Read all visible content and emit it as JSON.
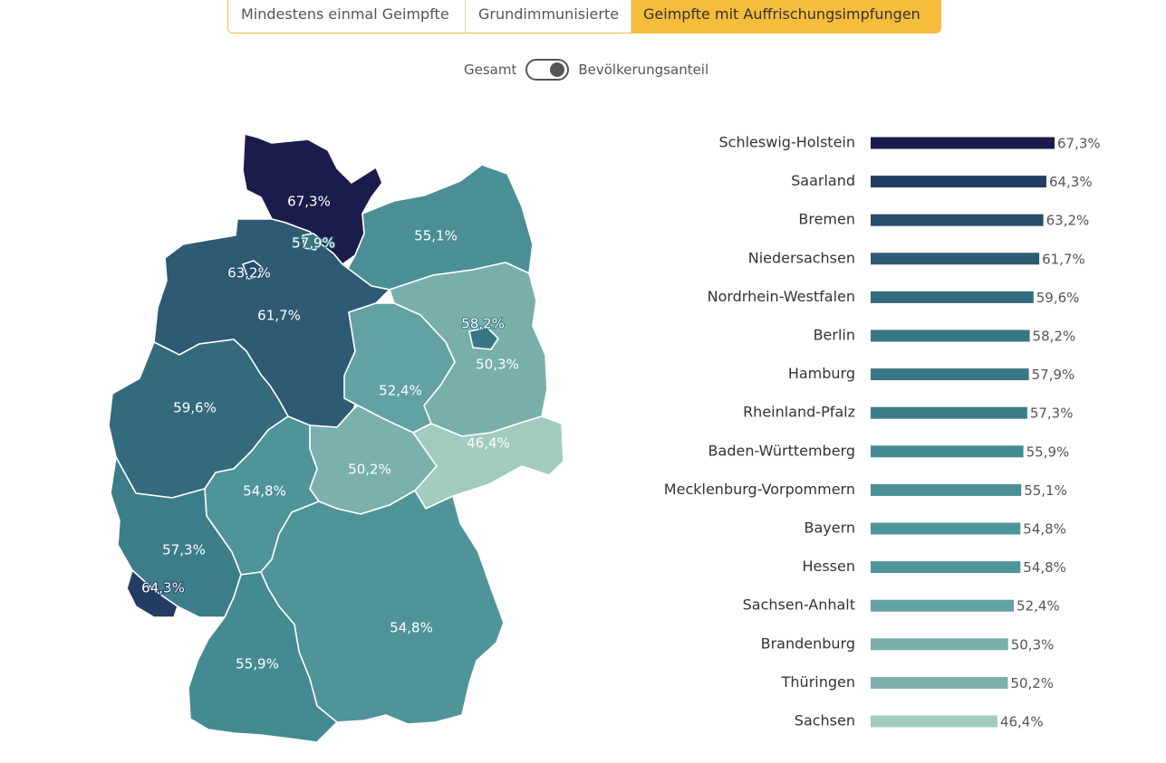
{
  "tabs": [
    {
      "label": "Mindestens einmal Geimpfte",
      "active": false
    },
    {
      "label": "Grundimmunisierte",
      "active": false
    },
    {
      "label": "Geimpfte mit Auffrischungsimpfungen",
      "active": true
    }
  ],
  "toggle": {
    "left_label": "Gesamt",
    "right_label": "Bevölkerungsanteil",
    "selected": "Bevölkerungsanteil"
  },
  "chart_data": {
    "type": "bar",
    "orientation": "horizontal",
    "value_suffix": "%",
    "decimal_separator": ",",
    "xlim": [
      0,
      67.3
    ],
    "categories": [
      "Schleswig-Holstein",
      "Saarland",
      "Bremen",
      "Niedersachsen",
      "Nordrhein-Westfalen",
      "Berlin",
      "Hamburg",
      "Rheinland-Pfalz",
      "Baden-Württemberg",
      "Mecklenburg-Vorpommern",
      "Bayern",
      "Hessen",
      "Sachsen-Anhalt",
      "Brandenburg",
      "Thüringen",
      "Sachsen"
    ],
    "values": [
      67.3,
      64.3,
      63.2,
      61.7,
      59.6,
      58.2,
      57.9,
      57.3,
      55.9,
      55.1,
      54.8,
      54.8,
      52.4,
      50.3,
      50.2,
      46.4
    ],
    "value_labels": [
      "67,3%",
      "64,3%",
      "63,2%",
      "61,7%",
      "59,6%",
      "58,2%",
      "57,9%",
      "57,3%",
      "55,9%",
      "55,1%",
      "54,8%",
      "54,8%",
      "52,4%",
      "50,3%",
      "50,2%",
      "46,4%"
    ],
    "colors": [
      "#1c1c4c",
      "#233d62",
      "#284c6c",
      "#2e5a74",
      "#336a7c",
      "#377683",
      "#387884",
      "#3b7e89",
      "#448a91",
      "#4a8f96",
      "#4f9499",
      "#4f9499",
      "#62a2a3",
      "#79afab",
      "#7bb0ac",
      "#a1cbbd"
    ],
    "choropleth": [
      {
        "region": "Schleswig-Holstein",
        "value": 67.3,
        "label": "67,3%",
        "color": "#1c1c4c"
      },
      {
        "region": "Hamburg",
        "value": 57.9,
        "label": "57,9%",
        "color": "#387884"
      },
      {
        "region": "Mecklenburg-Vorpommern",
        "value": 55.1,
        "label": "55,1%",
        "color": "#4a8f96"
      },
      {
        "region": "Bremen",
        "value": 63.2,
        "label": "63,2%",
        "color": "#284c6c"
      },
      {
        "region": "Niedersachsen",
        "value": 61.7,
        "label": "61,7%",
        "color": "#2e5a74"
      },
      {
        "region": "Berlin",
        "value": 58.2,
        "label": "58,2%",
        "color": "#377683"
      },
      {
        "region": "Brandenburg",
        "value": 50.3,
        "label": "50,3%",
        "color": "#79afab"
      },
      {
        "region": "Sachsen-Anhalt",
        "value": 52.4,
        "label": "52,4%",
        "color": "#62a2a3"
      },
      {
        "region": "Nordrhein-Westfalen",
        "value": 59.6,
        "label": "59,6%",
        "color": "#336a7c"
      },
      {
        "region": "Sachsen",
        "value": 46.4,
        "label": "46,4%",
        "color": "#a1cbbd"
      },
      {
        "region": "Thüringen",
        "value": 50.2,
        "label": "50,2%",
        "color": "#7bb0ac"
      },
      {
        "region": "Hessen",
        "value": 54.8,
        "label": "54,8%",
        "color": "#4f9499"
      },
      {
        "region": "Rheinland-Pfalz",
        "value": 57.3,
        "label": "57,3%",
        "color": "#3b7e89"
      },
      {
        "region": "Saarland",
        "value": 64.3,
        "label": "64,3%",
        "color": "#233d62"
      },
      {
        "region": "Bayern",
        "value": 54.8,
        "label": "54,8%",
        "color": "#4f9499"
      },
      {
        "region": "Baden-Württemberg",
        "value": 55.9,
        "label": "55,9%",
        "color": "#448a91"
      }
    ]
  }
}
